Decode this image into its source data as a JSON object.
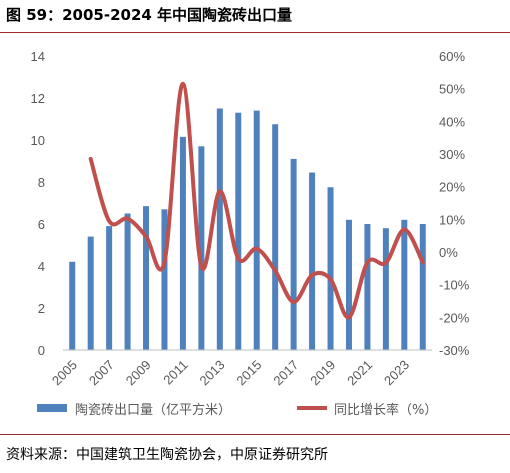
{
  "header": {
    "title": "图 59：2005-2024 年中国陶瓷砖出口量"
  },
  "footer": {
    "source": "资料来源：中国建筑卫生陶瓷协会，中原证券研究所"
  },
  "colors": {
    "bar": "#4f81bd",
    "line": "#c0504d",
    "rule": "#9e2a2b"
  },
  "chart_data": {
    "type": "bar+line",
    "x": [
      2005,
      2006,
      2007,
      2008,
      2009,
      2010,
      2011,
      2012,
      2013,
      2014,
      2015,
      2016,
      2017,
      2018,
      2019,
      2020,
      2021,
      2022,
      2023,
      2024
    ],
    "x_tick_labels": [
      "2005",
      "2007",
      "2009",
      "2011",
      "2013",
      "2015",
      "2017",
      "2019",
      "2021",
      "2023"
    ],
    "series": [
      {
        "name": "陶瓷砖出口量（亿平方米）",
        "type": "bar",
        "axis": "left",
        "values": [
          4.2,
          5.4,
          5.9,
          6.5,
          6.85,
          6.7,
          10.15,
          9.7,
          11.5,
          11.3,
          11.4,
          10.75,
          9.1,
          8.45,
          7.75,
          6.2,
          6.0,
          5.8,
          6.2,
          6.0
        ]
      },
      {
        "name": "同比增长率（%）",
        "type": "line",
        "axis": "right",
        "values": [
          null,
          28.5,
          9.5,
          10.2,
          4.8,
          -3.0,
          51.5,
          -4.5,
          18.6,
          -2.0,
          1.0,
          -5.7,
          -15.3,
          -7.1,
          -8.3,
          -20.0,
          -3.2,
          -3.3,
          6.9,
          -3.2
        ]
      }
    ],
    "y_left": {
      "ylim": [
        0,
        14
      ],
      "ticks": [
        "0",
        "2",
        "4",
        "6",
        "8",
        "10",
        "12",
        "14"
      ]
    },
    "y_right": {
      "ylim": [
        -30,
        60
      ],
      "ticks": [
        "-30%",
        "-20%",
        "-10%",
        "0%",
        "10%",
        "20%",
        "30%",
        "40%",
        "50%",
        "60%"
      ]
    },
    "grid": false,
    "legend": "bottom"
  }
}
